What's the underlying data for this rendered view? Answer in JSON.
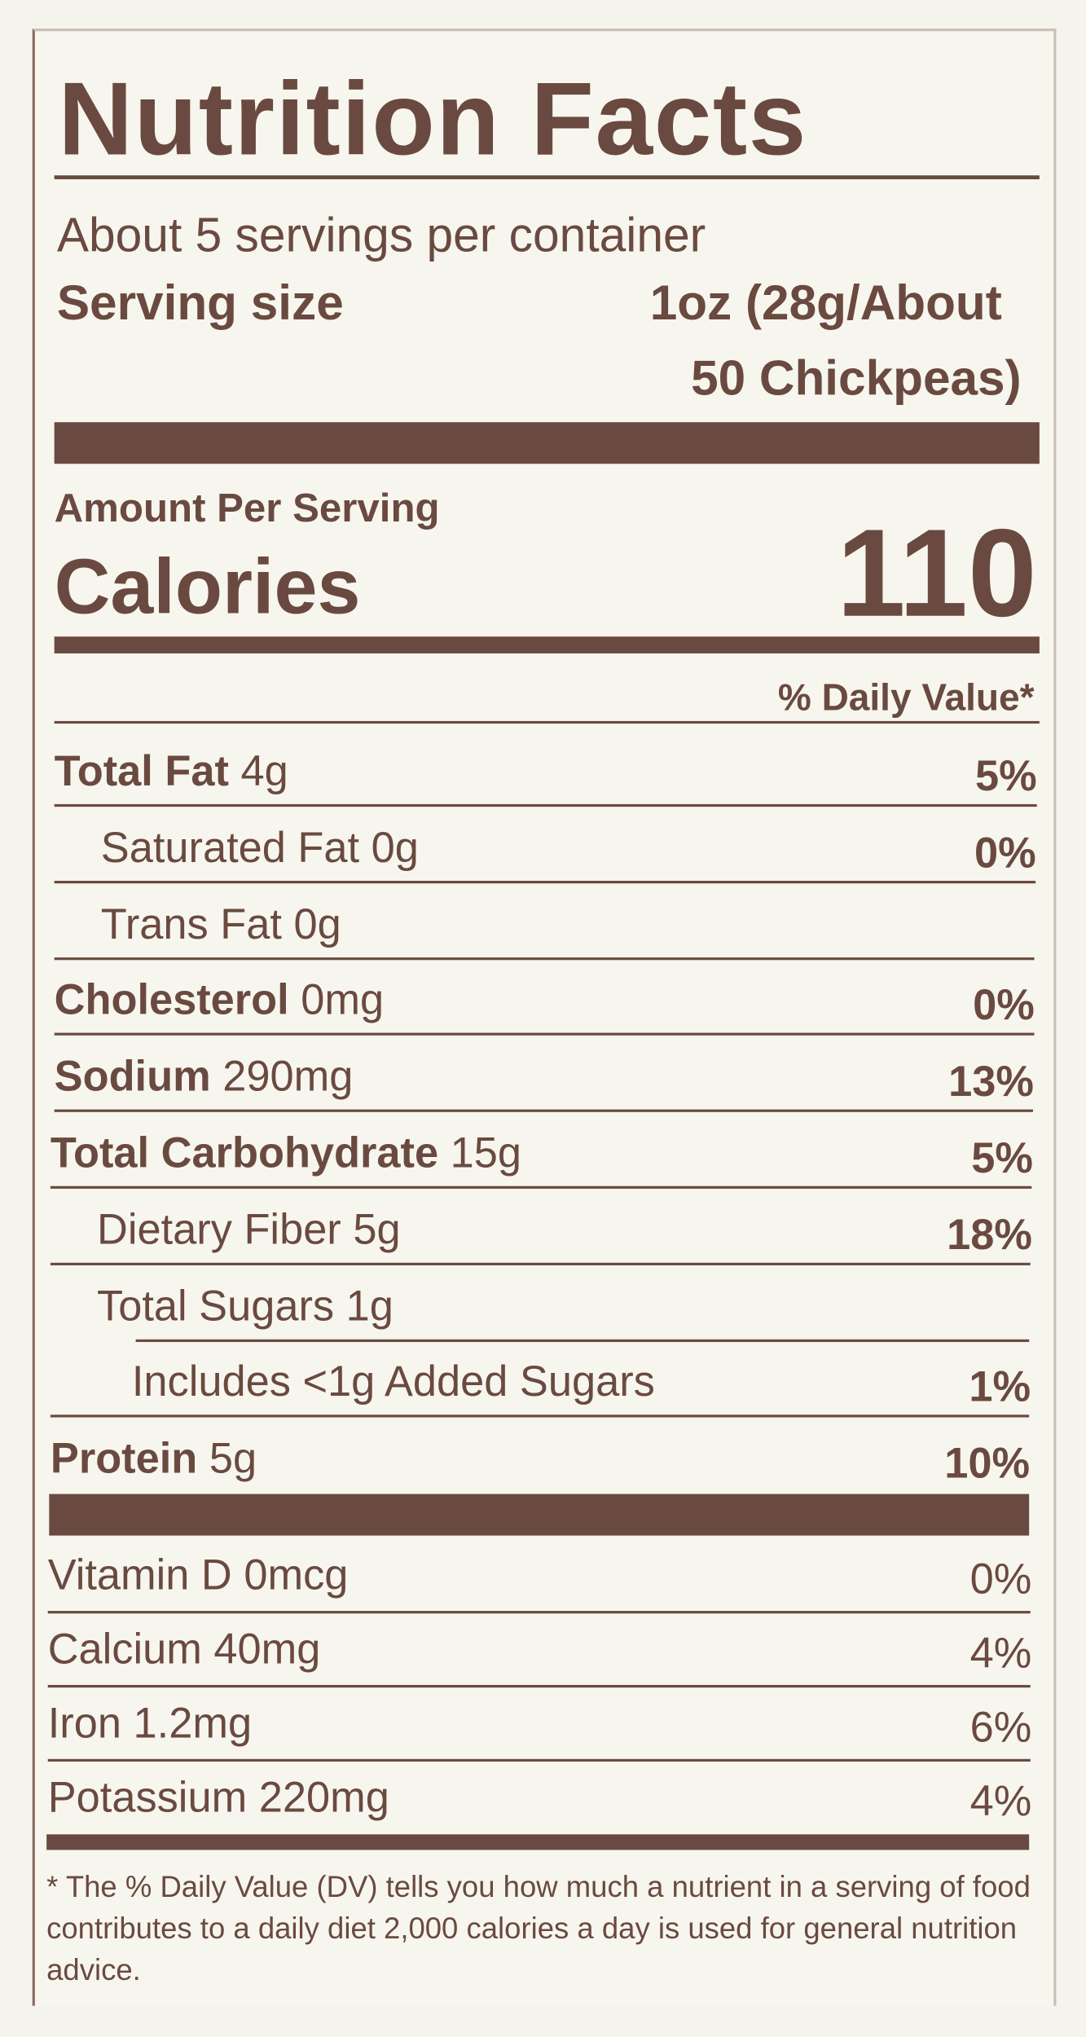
{
  "header": {
    "title": "Nutrition Facts",
    "servings": "About 5 servings per container",
    "serving_size_label": "Serving size",
    "serving_size_value": [
      "1oz (28g/About",
      "50 Chickpeas)"
    ]
  },
  "calories": {
    "amount_per_serving": "Amount Per Serving",
    "label": "Calories",
    "value": "110"
  },
  "daily_value_header": "% Daily Value*",
  "nutrients": [
    {
      "nutrient": "Total Fat",
      "amount": "4g",
      "dv": "5%"
    },
    {
      "nutrient": "Saturated Fat",
      "amount": "0g",
      "dv": "0%"
    },
    {
      "nutrient": "Trans Fat",
      "amount": "0g"
    },
    {
      "nutrient": "Cholesterol",
      "amount": "0mg",
      "dv": "0%"
    },
    {
      "nutrient": "Sodium",
      "amount": "290mg",
      "dv": "13%"
    },
    {
      "nutrient": "Total Carbohydrate",
      "amount": "15g",
      "dv": "5%"
    },
    {
      "nutrient": "Dietary Fiber",
      "amount": "5g",
      "dv": "18%"
    },
    {
      "nutrient": "Total Sugars",
      "amount": "1g"
    },
    {
      "nutrient": "Includes <1g Added Sugars",
      "dv": "1%"
    },
    {
      "nutrient": "Protein",
      "amount": "5g",
      "dv": "10%"
    }
  ],
  "vitamins": [
    {
      "nutrient": "Vitamin D",
      "amount": "0mcg",
      "dv": "0%"
    },
    {
      "nutrient": "Calcium",
      "amount": "40mg",
      "dv": "4%"
    },
    {
      "nutrient": "Iron",
      "amount": "1.2mg",
      "dv": "6%"
    },
    {
      "nutrient": "Potassium",
      "amount": "220mg",
      "dv": "4%"
    }
  ],
  "footnote": "* The % Daily Value (DV) tells you how much a nutrient in a serving of food contributes to a daily diet 2,000 calories a day is used for general nutrition advice."
}
